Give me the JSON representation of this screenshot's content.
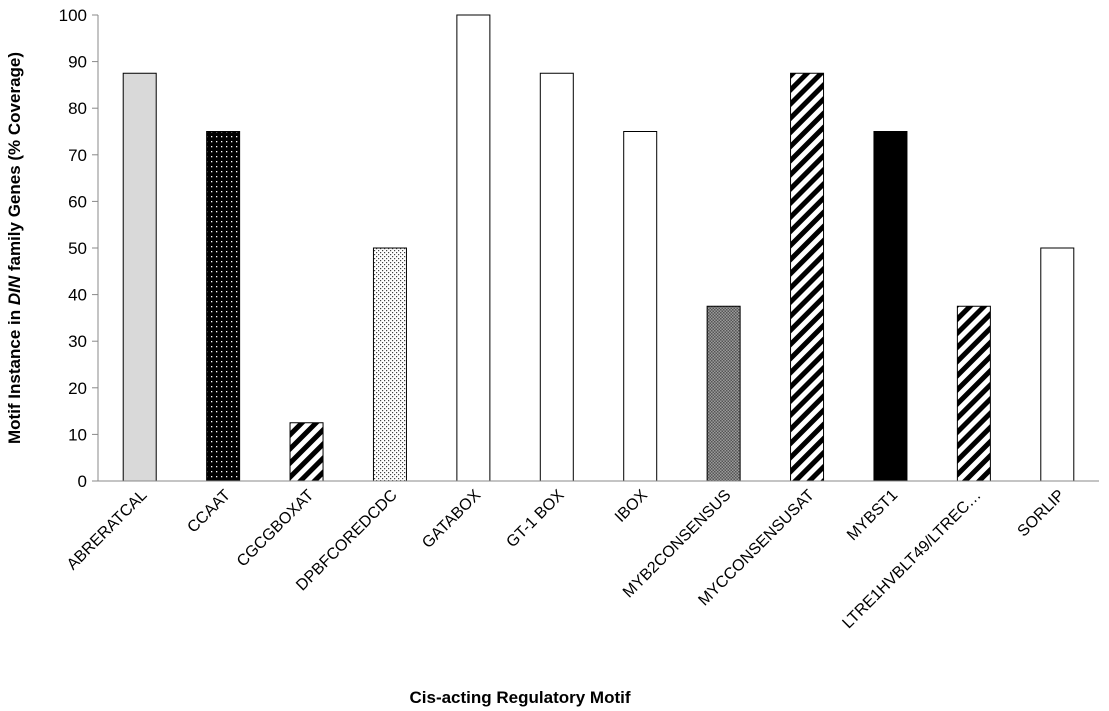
{
  "chart_data": {
    "type": "bar",
    "title": "",
    "xlabel": "Cis-acting Regulatory Motif",
    "ylabel_parts": [
      {
        "text": "Motif Instance in ",
        "italic": false
      },
      {
        "text": "DIN",
        "italic": true
      },
      {
        "text": " family Genes (% Coverage)",
        "italic": false
      }
    ],
    "ylim": [
      0,
      100
    ],
    "yticks": [
      0,
      10,
      20,
      30,
      40,
      50,
      60,
      70,
      80,
      90,
      100
    ],
    "grid": false,
    "categories": [
      "ABRERATCAL",
      "CCAAT",
      "CGCGBOXAT",
      "DPBFCOREDCDC",
      "GATABOX",
      "GT-1 BOX",
      "IBOX",
      "MYB2CONSENSUS",
      "MYCCONSENSUSAT",
      "MYBST1",
      "LTRE1HVBLT49/LTREC…",
      "SORLIP"
    ],
    "values": [
      87.5,
      75,
      12.5,
      50,
      100,
      87.5,
      75,
      37.5,
      87.5,
      75,
      37.5,
      50
    ],
    "fills": [
      "light-gray",
      "black-dots",
      "diagonal-stripes",
      "sparse-dots",
      "white",
      "white",
      "white",
      "gray-crosshatch",
      "diagonal-stripes",
      "black",
      "diagonal-stripes",
      "white"
    ]
  }
}
